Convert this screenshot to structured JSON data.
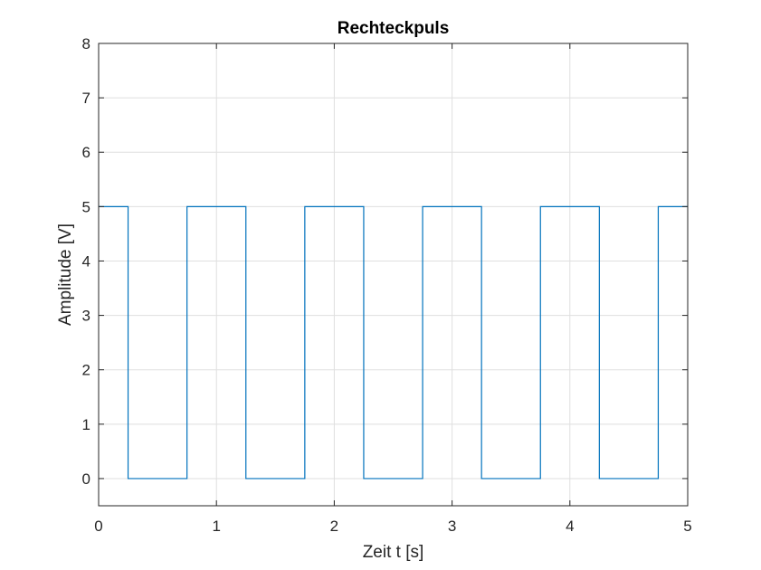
{
  "chart_data": {
    "type": "line",
    "title": "Rechteckpuls",
    "xlabel": "Zeit t [s]",
    "ylabel": "Amplitude [V]",
    "xlim": [
      0,
      5
    ],
    "ylim": [
      -0.5,
      8
    ],
    "xticks": [
      0,
      1,
      2,
      3,
      4,
      5
    ],
    "yticks": [
      0,
      1,
      2,
      3,
      4,
      5,
      6,
      7,
      8
    ],
    "grid": true,
    "series": [
      {
        "color": "#0072bd",
        "x": [
          0,
          0.25,
          0.25,
          0.75,
          0.75,
          1.25,
          1.25,
          1.75,
          1.75,
          2.25,
          2.25,
          2.75,
          2.75,
          3.25,
          3.25,
          3.75,
          3.75,
          4.25,
          4.25,
          4.75,
          4.75,
          5
        ],
        "y": [
          5,
          5,
          0,
          0,
          5,
          5,
          0,
          0,
          5,
          5,
          0,
          0,
          5,
          5,
          0,
          0,
          5,
          5,
          0,
          0,
          5,
          5
        ]
      }
    ]
  }
}
